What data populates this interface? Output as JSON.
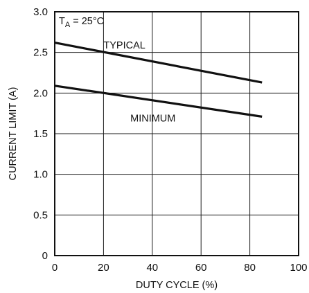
{
  "chart_data": {
    "type": "line",
    "title": "",
    "xlabel": "DUTY CYCLE (%)",
    "ylabel": "CURRENT LIMIT (A)",
    "xlim": [
      0,
      100
    ],
    "ylim": [
      0,
      3.0
    ],
    "x_ticks": [
      0,
      20,
      40,
      60,
      80,
      100
    ],
    "y_ticks": [
      0,
      0.5,
      1.0,
      1.5,
      2.0,
      2.5,
      3.0
    ],
    "x_tick_labels": [
      "0",
      "20",
      "40",
      "60",
      "80",
      "100"
    ],
    "y_tick_labels": [
      "0",
      "0.5",
      "1.0",
      "1.5",
      "2.0",
      "2.5",
      "3.0"
    ],
    "grid": true,
    "condition": {
      "main": "T",
      "sub": "A",
      "rest": " = 25°C"
    },
    "series": [
      {
        "name": "TYPICAL",
        "x": [
          0,
          85
        ],
        "y": [
          2.62,
          2.13
        ]
      },
      {
        "name": "MINIMUM",
        "x": [
          0,
          85
        ],
        "y": [
          2.09,
          1.71
        ]
      }
    ]
  }
}
